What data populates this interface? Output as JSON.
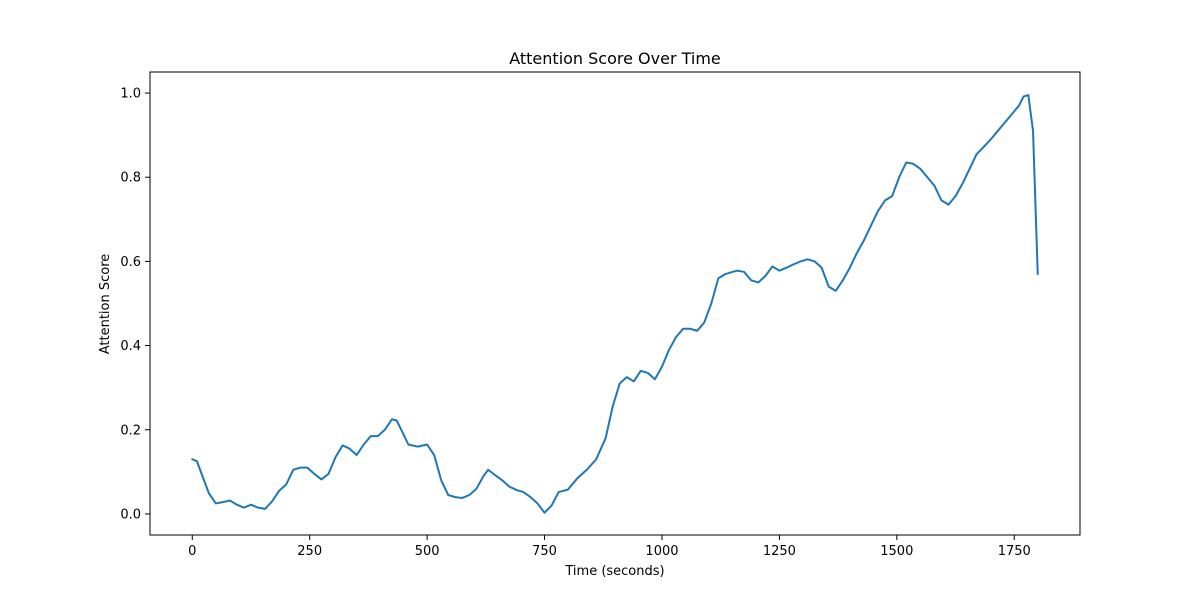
{
  "chart_data": {
    "type": "line",
    "title": "Attention Score Over Time",
    "xlabel": "Time (seconds)",
    "ylabel": "Attention Score",
    "xlim": [
      -90,
      1890
    ],
    "ylim": [
      -0.05,
      1.05
    ],
    "xticks": [
      0,
      250,
      500,
      750,
      1000,
      1250,
      1500,
      1750
    ],
    "yticks": [
      0.0,
      0.2,
      0.4,
      0.6,
      0.8,
      1.0
    ],
    "ytick_labels": [
      "0.0",
      "0.2",
      "0.4",
      "0.6",
      "0.8",
      "1.0"
    ],
    "grid": false,
    "series": [
      {
        "color": "#1f77b4",
        "x": [
          0,
          10,
          20,
          35,
          50,
          65,
          80,
          95,
          110,
          125,
          140,
          155,
          170,
          185,
          200,
          215,
          230,
          245,
          260,
          275,
          290,
          305,
          320,
          335,
          350,
          365,
          380,
          395,
          410,
          425,
          435,
          445,
          460,
          480,
          500,
          515,
          530,
          545,
          560,
          575,
          590,
          605,
          620,
          630,
          645,
          660,
          675,
          690,
          705,
          720,
          735,
          750,
          765,
          780,
          800,
          820,
          840,
          860,
          880,
          895,
          910,
          925,
          940,
          955,
          970,
          985,
          1000,
          1015,
          1030,
          1045,
          1060,
          1075,
          1090,
          1105,
          1120,
          1135,
          1150,
          1160,
          1175,
          1190,
          1205,
          1220,
          1235,
          1250,
          1265,
          1280,
          1295,
          1310,
          1325,
          1340,
          1355,
          1370,
          1385,
          1400,
          1415,
          1430,
          1445,
          1460,
          1475,
          1490,
          1505,
          1520,
          1535,
          1550,
          1565,
          1580,
          1595,
          1610,
          1625,
          1640,
          1655,
          1670,
          1685,
          1700,
          1715,
          1730,
          1745,
          1760,
          1770,
          1780,
          1790,
          1800
        ],
        "y": [
          0.13,
          0.125,
          0.095,
          0.05,
          0.025,
          0.028,
          0.032,
          0.022,
          0.015,
          0.022,
          0.015,
          0.012,
          0.03,
          0.055,
          0.07,
          0.105,
          0.11,
          0.11,
          0.095,
          0.082,
          0.095,
          0.135,
          0.163,
          0.155,
          0.14,
          0.165,
          0.185,
          0.185,
          0.2,
          0.225,
          0.222,
          0.2,
          0.165,
          0.16,
          0.165,
          0.14,
          0.08,
          0.045,
          0.04,
          0.038,
          0.045,
          0.06,
          0.09,
          0.105,
          0.092,
          0.08,
          0.065,
          0.057,
          0.052,
          0.04,
          0.025,
          0.003,
          0.02,
          0.052,
          0.058,
          0.085,
          0.105,
          0.13,
          0.18,
          0.255,
          0.31,
          0.325,
          0.315,
          0.34,
          0.335,
          0.32,
          0.35,
          0.39,
          0.42,
          0.44,
          0.44,
          0.435,
          0.455,
          0.5,
          0.56,
          0.57,
          0.575,
          0.578,
          0.575,
          0.555,
          0.55,
          0.565,
          0.588,
          0.578,
          0.585,
          0.593,
          0.6,
          0.605,
          0.6,
          0.585,
          0.54,
          0.53,
          0.555,
          0.585,
          0.62,
          0.65,
          0.685,
          0.72,
          0.745,
          0.755,
          0.8,
          0.835,
          0.832,
          0.82,
          0.8,
          0.78,
          0.745,
          0.735,
          0.755,
          0.785,
          0.82,
          0.855,
          0.872,
          0.89,
          0.91,
          0.93,
          0.95,
          0.97,
          0.992,
          0.995,
          0.91,
          0.57
        ]
      }
    ]
  }
}
